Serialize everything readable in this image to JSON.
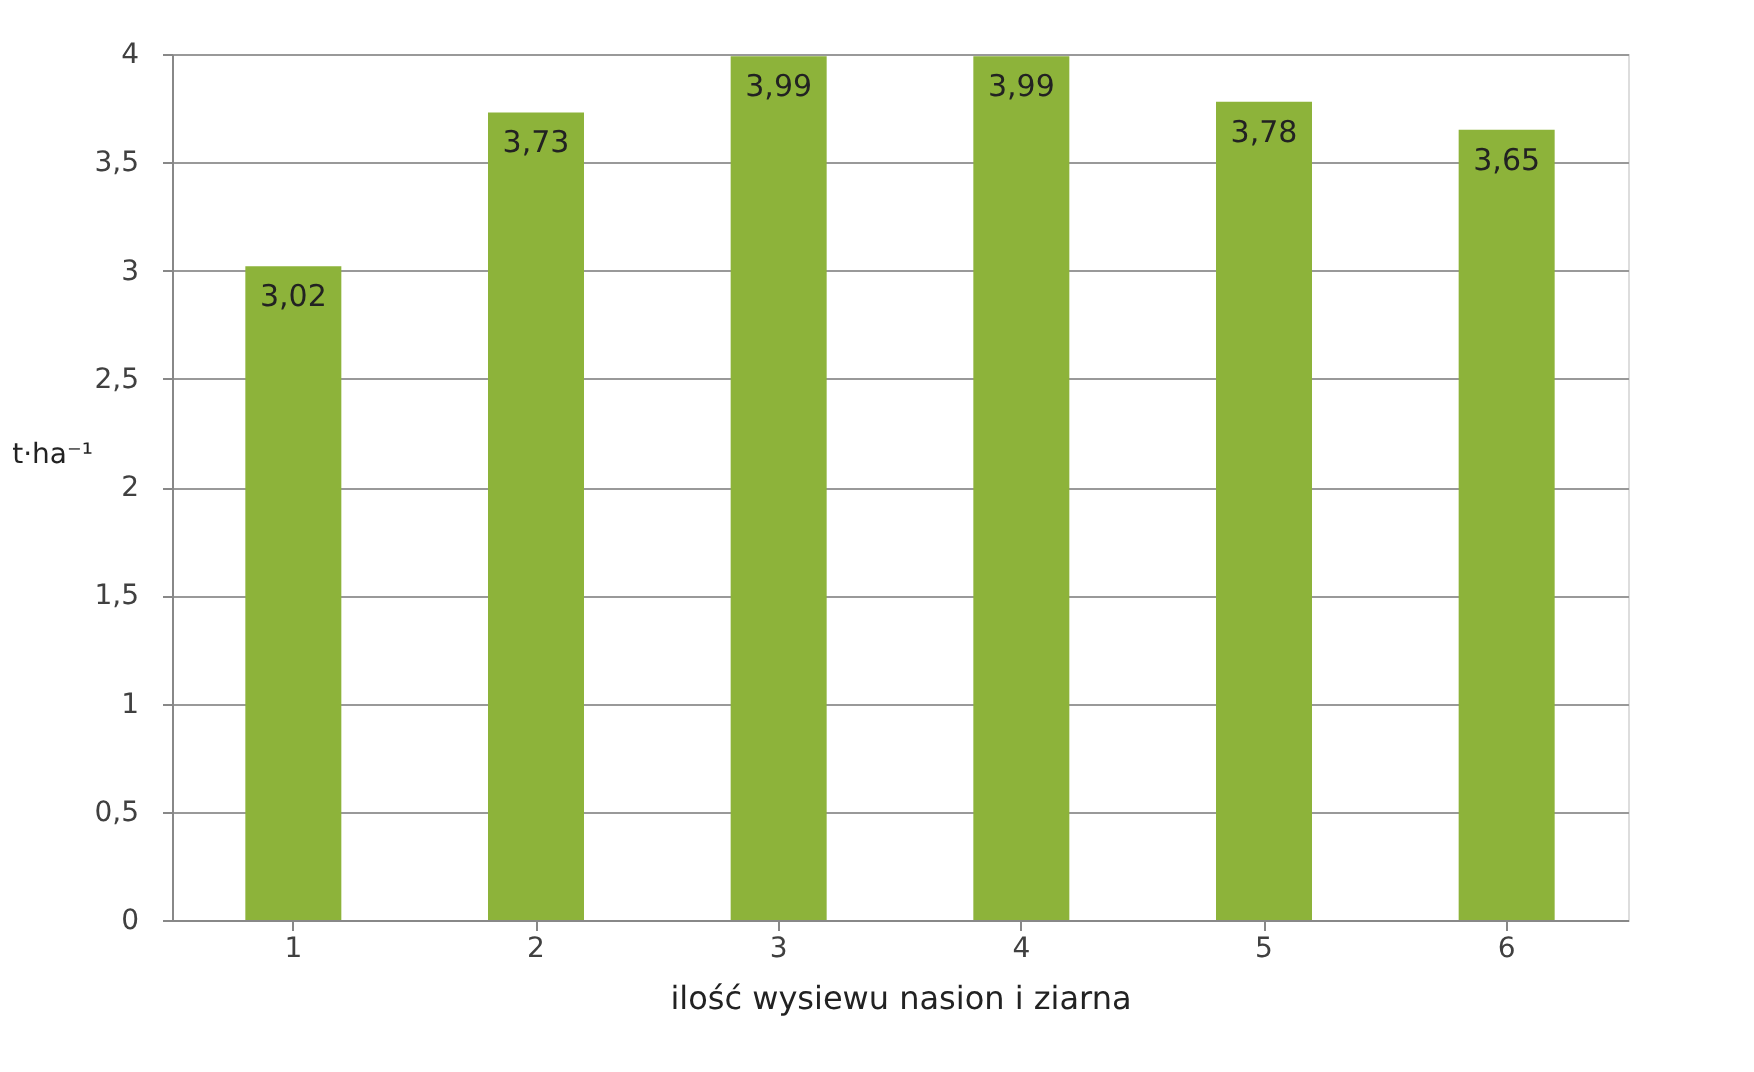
{
  "chart_data": {
    "type": "bar",
    "xlabel": "ilość wysiewu nasion i ziarna",
    "ylabel": "t·ha⁻¹",
    "categories": [
      "1",
      "2",
      "3",
      "4",
      "5",
      "6"
    ],
    "values": [
      3.02,
      3.73,
      3.99,
      3.99,
      3.78,
      3.65
    ],
    "value_labels": [
      "3,02",
      "3,73",
      "3,99",
      "3,99",
      "3,78",
      "3,65"
    ],
    "color": "#8db33a",
    "ylim": [
      0,
      4
    ],
    "yticks": [
      0,
      {
        "value": 0.5,
        "label": "0,5"
      },
      1,
      {
        "value": 1.5,
        "label": "1,5"
      },
      2,
      {
        "value": 2.5,
        "label": "2,5"
      },
      3,
      {
        "value": 3.5,
        "label": "3,5"
      },
      4
    ],
    "grid": "y"
  }
}
